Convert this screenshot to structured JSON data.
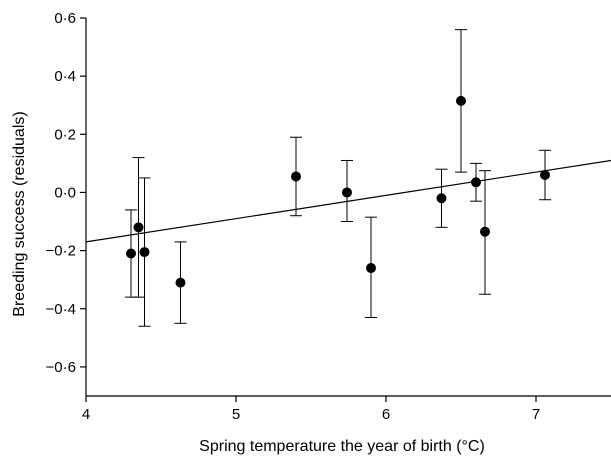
{
  "chart_data": {
    "type": "scatter",
    "title": "",
    "xlabel": "Spring temperature the year of birth (°C)",
    "ylabel": "Breeding success (residuals)",
    "xlim": [
      4,
      7.5
    ],
    "ylim": [
      -0.7,
      0.6
    ],
    "x_ticks": [
      4,
      5,
      6,
      7
    ],
    "x_tick_labels": [
      "4",
      "5",
      "6",
      "7"
    ],
    "y_ticks": [
      0.6,
      0.4,
      0.2,
      0.0,
      -0.2,
      -0.4,
      -0.6
    ],
    "y_tick_labels": [
      "0·6",
      "0·4",
      "0·2",
      "0·0",
      "−0·2",
      "−0·4",
      "−0·6"
    ],
    "grid": false,
    "legend": false,
    "points": [
      {
        "x": 4.3,
        "y": -0.21,
        "err_low": -0.36,
        "err_high": -0.06
      },
      {
        "x": 4.35,
        "y": -0.12,
        "err_low": -0.36,
        "err_high": 0.12
      },
      {
        "x": 4.39,
        "y": -0.205,
        "err_low": -0.46,
        "err_high": 0.05
      },
      {
        "x": 4.63,
        "y": -0.31,
        "err_low": -0.45,
        "err_high": -0.17
      },
      {
        "x": 5.4,
        "y": 0.055,
        "err_low": -0.08,
        "err_high": 0.19
      },
      {
        "x": 5.74,
        "y": 0.0,
        "err_low": -0.1,
        "err_high": 0.11
      },
      {
        "x": 5.9,
        "y": -0.26,
        "err_low": -0.43,
        "err_high": -0.085
      },
      {
        "x": 6.37,
        "y": -0.02,
        "err_low": -0.12,
        "err_high": 0.08
      },
      {
        "x": 6.5,
        "y": 0.315,
        "err_low": 0.07,
        "err_high": 0.56
      },
      {
        "x": 6.6,
        "y": 0.035,
        "err_low": -0.03,
        "err_high": 0.1
      },
      {
        "x": 6.66,
        "y": -0.135,
        "err_low": -0.35,
        "err_high": 0.075
      },
      {
        "x": 7.06,
        "y": 0.06,
        "err_low": -0.025,
        "err_high": 0.145
      }
    ],
    "fit_line": {
      "x": [
        4.0,
        7.5
      ],
      "y": [
        -0.17,
        0.11
      ]
    }
  }
}
